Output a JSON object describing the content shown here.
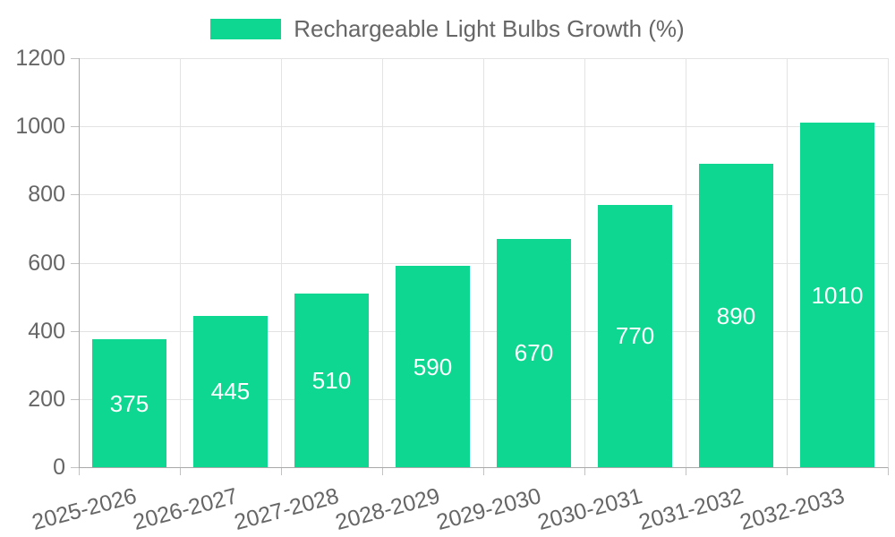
{
  "legend": {
    "label": "Rechargeable Light Bulbs Growth (%)"
  },
  "chart_data": {
    "type": "bar",
    "title": "Rechargeable Light Bulbs Growth (%)",
    "categories": [
      "2025-2026",
      "2026-2027",
      "2027-2028",
      "2028-2029",
      "2029-2030",
      "2030-2031",
      "2031-2032",
      "2032-2033"
    ],
    "values": [
      375,
      445,
      510,
      590,
      670,
      770,
      890,
      1010
    ],
    "bar_value_labels": [
      "375",
      "445",
      "510",
      "590",
      "670",
      "770",
      "890",
      "1010"
    ],
    "xlabel": "",
    "ylabel": "",
    "ylim": [
      0,
      1200
    ],
    "y_tick_step": 200,
    "y_tick_labels": [
      "0",
      "200",
      "400",
      "600",
      "800",
      "1000",
      "1200"
    ],
    "grid": true,
    "legend_position": "top-center",
    "x_label_rotation_deg": -15,
    "colors": {
      "bar": "#0dd790",
      "grid": "#e3e3e3",
      "axis": "#a9a9a9",
      "tick": "#c2c2c2",
      "text": "#666666",
      "bar_label": "#ffffff",
      "background": "#ffffff"
    }
  }
}
